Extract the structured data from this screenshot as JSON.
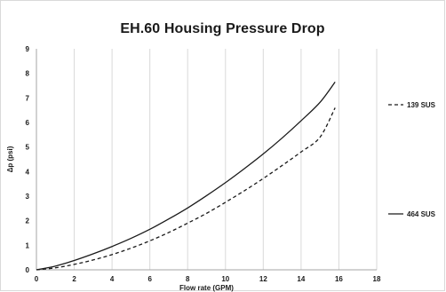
{
  "chart_data": {
    "type": "line",
    "title": "EH.60 Housing Pressure Drop",
    "xlabel": "Flow rate (GPM)",
    "ylabel": "Δp (psi)",
    "xlim": [
      0,
      18
    ],
    "ylim": [
      0,
      9
    ],
    "xticks": [
      0,
      2,
      4,
      6,
      8,
      10,
      12,
      14,
      16,
      18
    ],
    "yticks": [
      0,
      1,
      2,
      3,
      4,
      5,
      6,
      7,
      8,
      9
    ],
    "grid": {
      "vertical": true,
      "horizontal": false
    },
    "legend_position": "right",
    "series": [
      {
        "name": "139 SUS",
        "style": "dashed",
        "color": "#1a1a1a",
        "x": [
          0,
          1,
          2,
          3,
          4,
          5,
          6,
          7,
          8,
          9,
          10,
          11,
          12,
          13,
          14,
          15,
          15.8
        ],
        "y": [
          0,
          0.08,
          0.22,
          0.4,
          0.62,
          0.88,
          1.18,
          1.52,
          1.9,
          2.3,
          2.75,
          3.22,
          3.72,
          4.25,
          4.8,
          5.4,
          6.6
        ]
      },
      {
        "name": "464 SUS",
        "style": "solid",
        "color": "#1a1a1a",
        "x": [
          0,
          1,
          2,
          3,
          4,
          5,
          6,
          7,
          8,
          9,
          10,
          11,
          12,
          13,
          14,
          15,
          15.8
        ],
        "y": [
          0,
          0.15,
          0.38,
          0.65,
          0.95,
          1.28,
          1.65,
          2.07,
          2.52,
          3.02,
          3.55,
          4.12,
          4.72,
          5.37,
          6.07,
          6.82,
          7.65
        ]
      }
    ]
  }
}
